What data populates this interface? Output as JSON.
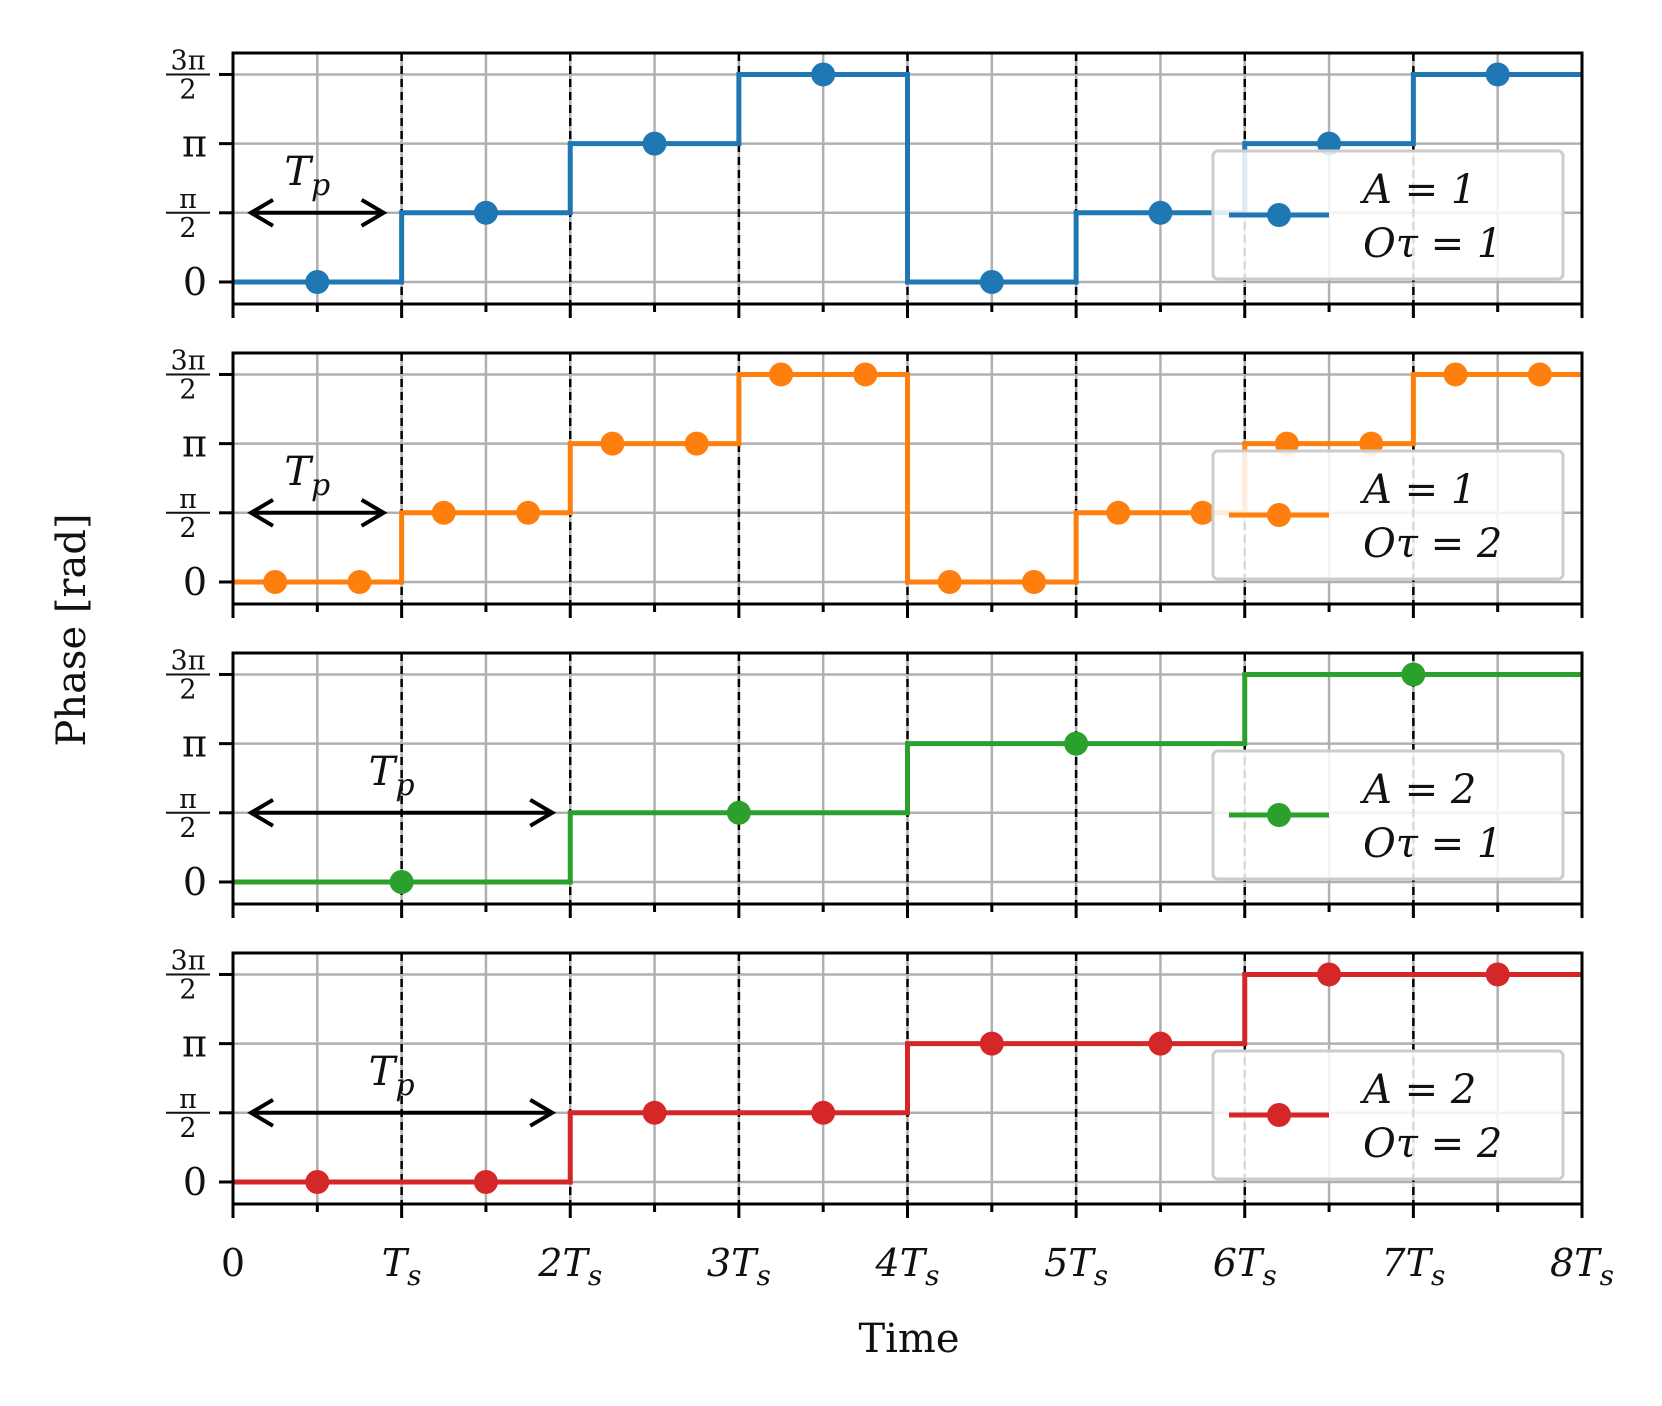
{
  "chart_data": {
    "type": "line",
    "step": true,
    "xlabel": "Time",
    "ylabel": "Phase [rad]",
    "xlim": [
      0,
      8
    ],
    "ylim": [
      -0.5,
      5.2
    ],
    "x_ticks": [
      {
        "value": 0,
        "base": "0",
        "sub": ""
      },
      {
        "value": 1,
        "base": "T",
        "sub": "s"
      },
      {
        "value": 2,
        "base": "2T",
        "sub": "s"
      },
      {
        "value": 3,
        "base": "3T",
        "sub": "s"
      },
      {
        "value": 4,
        "base": "4T",
        "sub": "s"
      },
      {
        "value": 5,
        "base": "5T",
        "sub": "s"
      },
      {
        "value": 6,
        "base": "6T",
        "sub": "s"
      },
      {
        "value": 7,
        "base": "7T",
        "sub": "s"
      },
      {
        "value": 8,
        "base": "8T",
        "sub": "s"
      }
    ],
    "y_ticks": [
      {
        "value": 0,
        "label": "0",
        "num": "",
        "den": ""
      },
      {
        "value": 1.5708,
        "label": "",
        "num": "π",
        "den": "2"
      },
      {
        "value": 3.1416,
        "label": "π",
        "num": "",
        "den": ""
      },
      {
        "value": 4.7124,
        "label": "",
        "num": "3π",
        "den": "2"
      }
    ],
    "grid": true,
    "panels": [
      {
        "name": "A = 1, Oτ = 1",
        "color": "#1f77b4",
        "legend": {
          "line1": "A = 1",
          "line2": "Oτ = 1"
        },
        "legend_position": "right",
        "annotation": {
          "base": "T",
          "sub": "p",
          "x_start": 0,
          "x_end": 1,
          "y": 1.5708
        },
        "boundaries": [
          0,
          1,
          2,
          3,
          4,
          5,
          6,
          7,
          8
        ],
        "levels": [
          0,
          1.5708,
          3.1416,
          4.7124,
          0,
          1.5708,
          3.1416,
          4.7124
        ],
        "markers_x": [
          0.5,
          1.5,
          2.5,
          3.5,
          4.5,
          5.5,
          6.5,
          7.5
        ],
        "markers_y": [
          0,
          1.5708,
          3.1416,
          4.7124,
          0,
          1.5708,
          3.1416,
          4.7124
        ]
      },
      {
        "name": "A = 1, Oτ = 2",
        "color": "#ff7f0e",
        "legend": {
          "line1": "A = 1",
          "line2": "Oτ = 2"
        },
        "legend_position": "right",
        "annotation": {
          "base": "T",
          "sub": "p",
          "x_start": 0,
          "x_end": 1,
          "y": 1.5708
        },
        "boundaries": [
          0,
          1,
          2,
          3,
          4,
          5,
          6,
          7,
          8
        ],
        "levels": [
          0,
          1.5708,
          3.1416,
          4.7124,
          0,
          1.5708,
          3.1416,
          4.7124
        ],
        "markers_x": [
          0.25,
          0.75,
          1.25,
          1.75,
          2.25,
          2.75,
          3.25,
          3.75,
          4.25,
          4.75,
          5.25,
          5.75,
          6.25,
          6.75,
          7.25,
          7.75
        ],
        "markers_y": [
          0,
          0,
          1.5708,
          1.5708,
          3.1416,
          3.1416,
          4.7124,
          4.7124,
          0,
          0,
          1.5708,
          1.5708,
          3.1416,
          3.1416,
          4.7124,
          4.7124
        ]
      },
      {
        "name": "A = 2, Oτ = 1",
        "color": "#2ca02c",
        "legend": {
          "line1": "A = 2",
          "line2": "Oτ = 1"
        },
        "legend_position": "right",
        "annotation": {
          "base": "T",
          "sub": "p",
          "x_start": 0,
          "x_end": 2,
          "y": 1.5708
        },
        "boundaries": [
          0,
          2,
          4,
          6,
          8
        ],
        "levels": [
          0,
          1.5708,
          3.1416,
          4.7124
        ],
        "markers_x": [
          1,
          3,
          5,
          7
        ],
        "markers_y": [
          0,
          1.5708,
          3.1416,
          4.7124
        ]
      },
      {
        "name": "A = 2, Oτ = 2",
        "color": "#d62728",
        "legend": {
          "line1": "A = 2",
          "line2": "Oτ = 2"
        },
        "legend_position": "right",
        "annotation": {
          "base": "T",
          "sub": "p",
          "x_start": 0,
          "x_end": 2,
          "y": 1.5708
        },
        "boundaries": [
          0,
          2,
          4,
          6,
          8
        ],
        "levels": [
          0,
          1.5708,
          3.1416,
          4.7124
        ],
        "markers_x": [
          0.5,
          1.5,
          2.5,
          3.5,
          4.5,
          5.5,
          6.5,
          7.5
        ],
        "markers_y": [
          0,
          0,
          1.5708,
          1.5708,
          3.1416,
          3.1416,
          4.7124,
          4.7124
        ]
      }
    ]
  }
}
